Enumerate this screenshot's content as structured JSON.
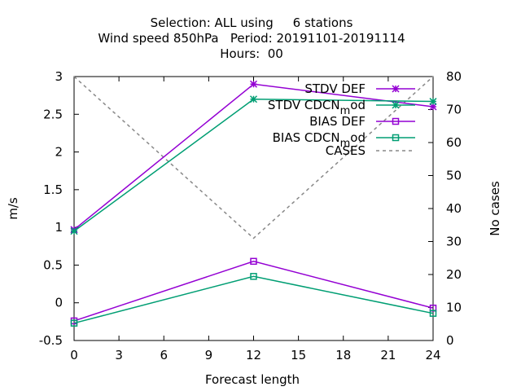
{
  "chart_data": {
    "type": "line",
    "title_lines": [
      "Selection: ALL using     6 stations",
      "Wind speed 850hPa   Period: 20191101-20191114",
      "Hours:  00"
    ],
    "xlabel": "Forecast length",
    "ylabel": "m/s",
    "y2label": "No cases",
    "xlim": [
      0,
      24
    ],
    "ylim": [
      -0.5,
      3
    ],
    "y2lim": [
      0,
      80
    ],
    "xticks": [
      0,
      3,
      6,
      9,
      12,
      15,
      18,
      21,
      24
    ],
    "yticks": [
      -0.5,
      0,
      0.5,
      1,
      1.5,
      2,
      2.5,
      3
    ],
    "y2ticks": [
      0,
      10,
      20,
      30,
      40,
      50,
      60,
      70,
      80
    ],
    "x": [
      0,
      12,
      24
    ],
    "series": [
      {
        "name": "STDV DEF",
        "legend_main": "STDV DEF",
        "legend_sub": "",
        "legend_tail": "",
        "axis": "y",
        "values": [
          0.97,
          2.9,
          2.6
        ],
        "color": "#9400d3",
        "marker": "star",
        "dash": false
      },
      {
        "name": "STDV CDCN_mod",
        "legend_main": "STDV CDCN",
        "legend_sub": "m",
        "legend_tail": "od",
        "axis": "y",
        "values": [
          0.95,
          2.7,
          2.67
        ],
        "color": "#009e73",
        "marker": "star",
        "dash": false
      },
      {
        "name": "BIAS DEF",
        "legend_main": "BIAS DEF",
        "legend_sub": "",
        "legend_tail": "",
        "axis": "y",
        "values": [
          -0.24,
          0.55,
          -0.07
        ],
        "color": "#9400d3",
        "marker": "square",
        "dash": false
      },
      {
        "name": "BIAS CDCN_mod",
        "legend_main": "BIAS CDCN",
        "legend_sub": "m",
        "legend_tail": "od",
        "axis": "y",
        "values": [
          -0.27,
          0.35,
          -0.14
        ],
        "color": "#009e73",
        "marker": "square",
        "dash": false
      },
      {
        "name": "CASES",
        "legend_main": "CASES",
        "legend_sub": "",
        "legend_tail": "",
        "axis": "y2",
        "values": [
          80,
          31,
          80
        ],
        "color": "#888888",
        "marker": "none",
        "dash": true
      }
    ],
    "legend_position": "top-right",
    "grid": false
  }
}
